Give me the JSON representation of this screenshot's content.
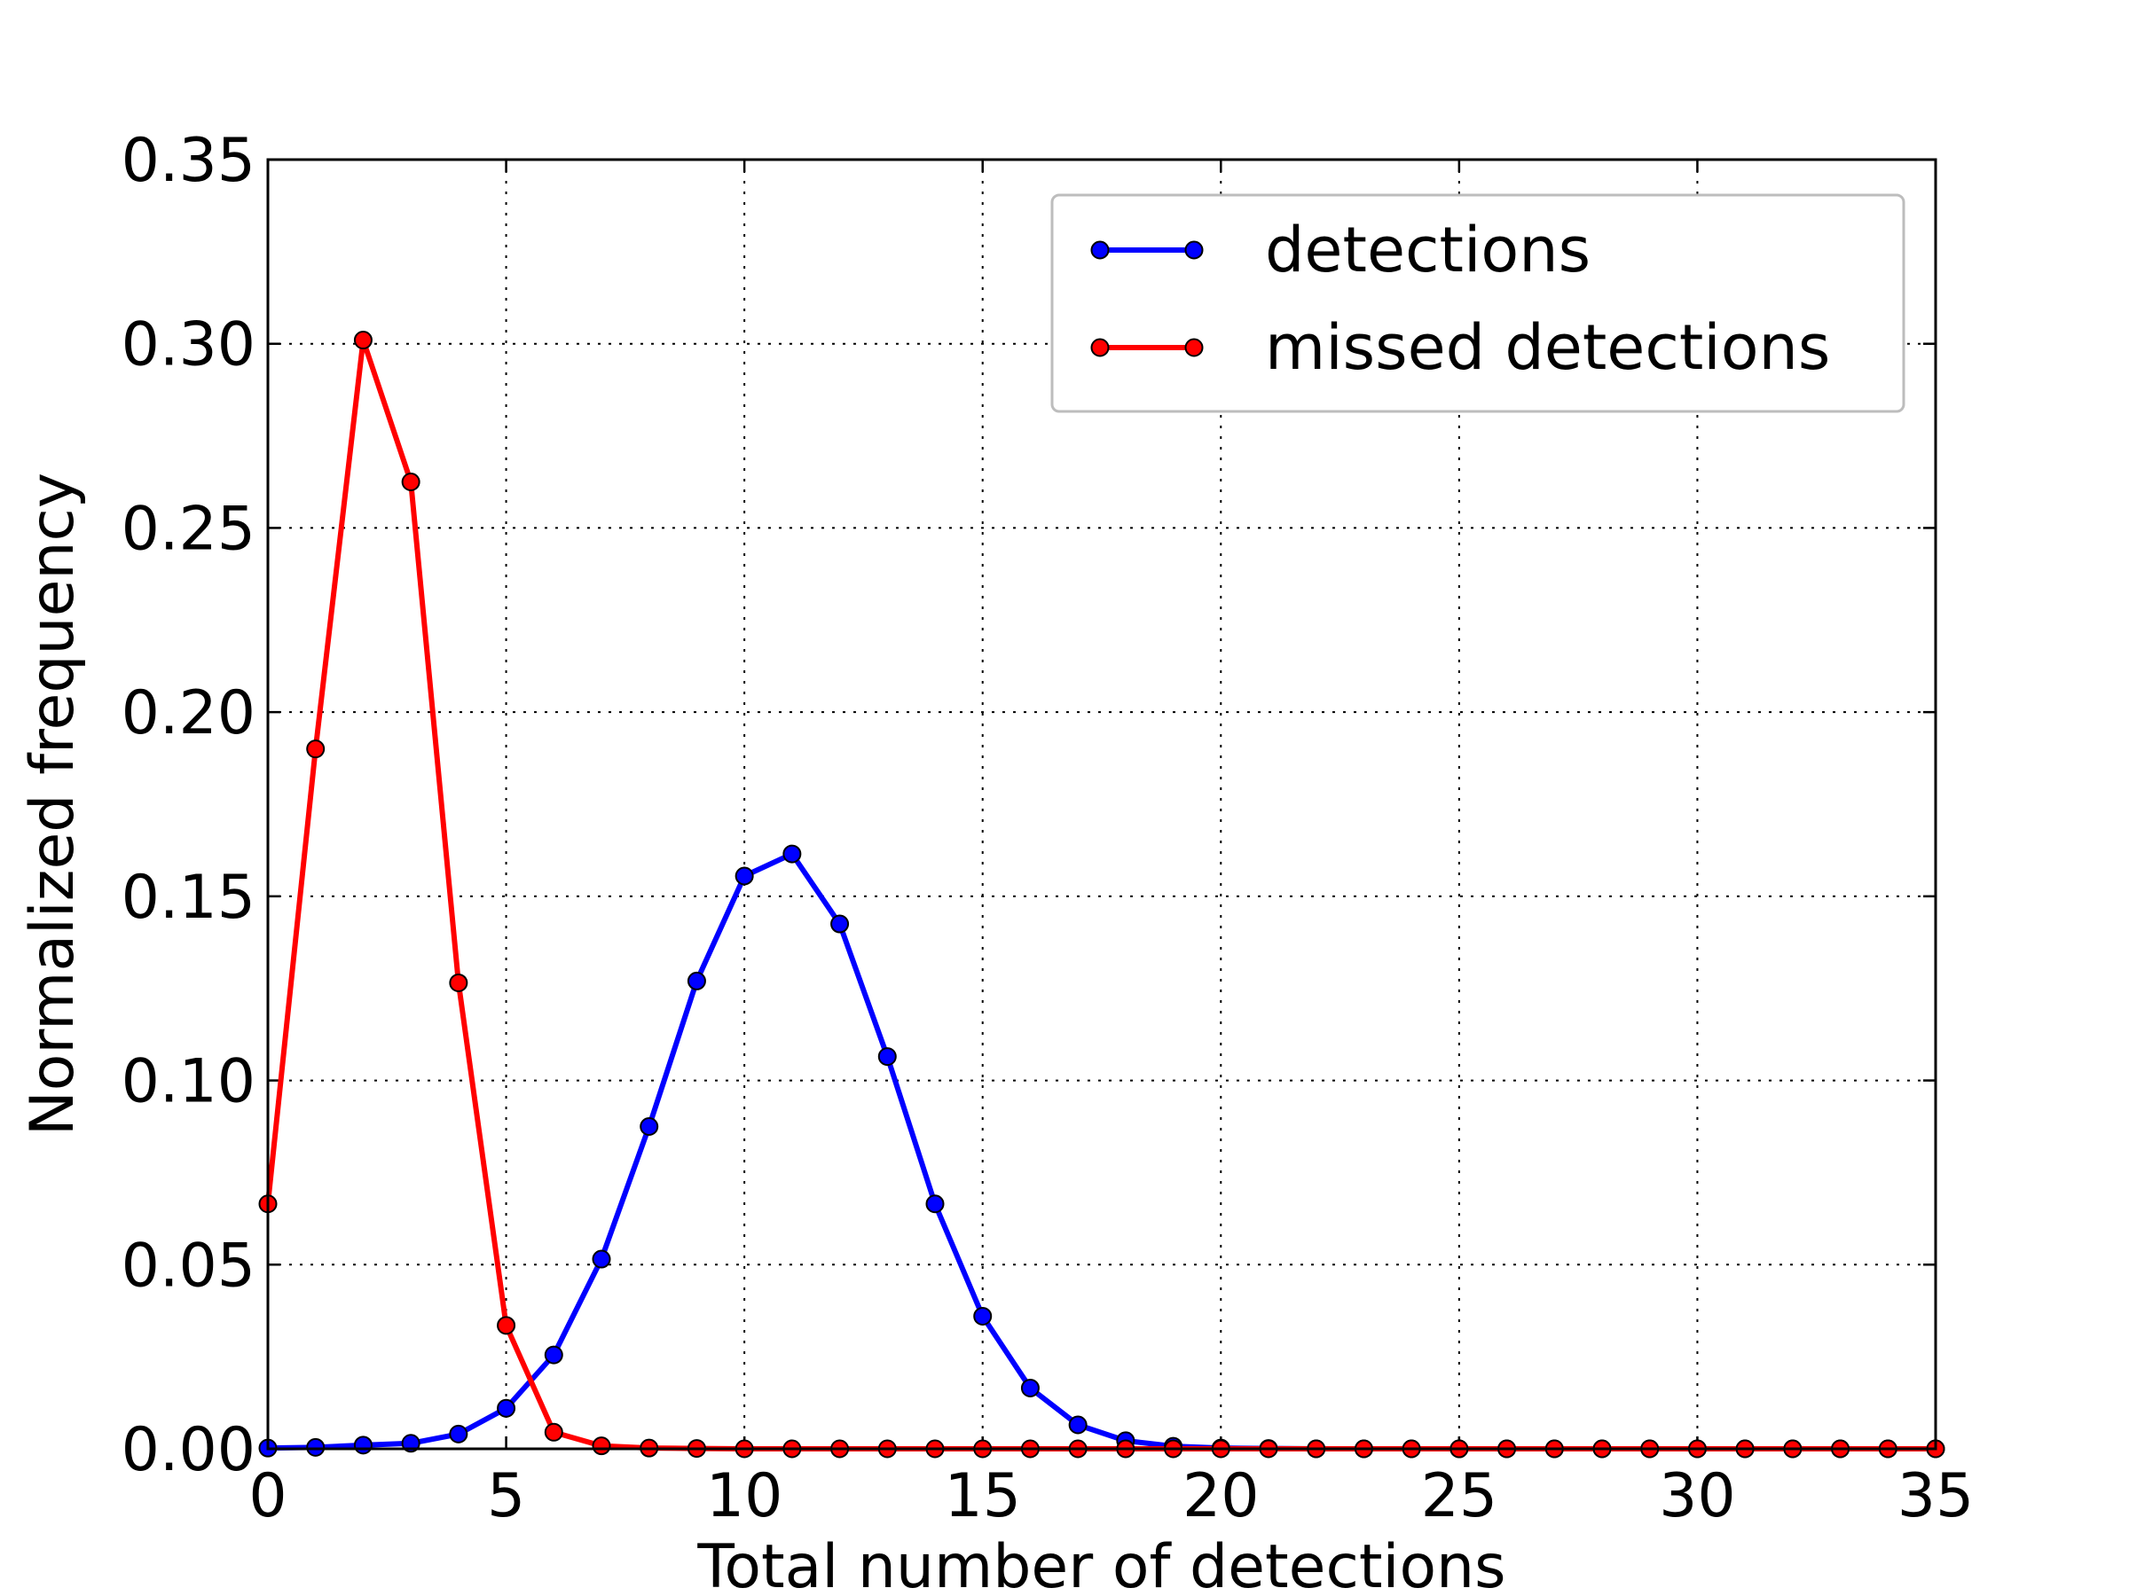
{
  "chart_data": {
    "type": "line",
    "title": "",
    "xlabel": "Total number of detections",
    "ylabel": "Normalized frequency",
    "xlim": [
      0,
      35
    ],
    "ylim": [
      0,
      0.35
    ],
    "xticks": [
      0,
      5,
      10,
      15,
      20,
      25,
      30,
      35
    ],
    "yticks": [
      0.0,
      0.05,
      0.1,
      0.15,
      0.2,
      0.25,
      0.3,
      0.35
    ],
    "xtick_labels": [
      "0",
      "5",
      "10",
      "15",
      "20",
      "25",
      "30",
      "35"
    ],
    "ytick_labels": [
      "0.00",
      "0.05",
      "0.10",
      "0.15",
      "0.20",
      "0.25",
      "0.30",
      "0.35"
    ],
    "grid": true,
    "legend_position": "top-right",
    "x": [
      0,
      1,
      2,
      3,
      4,
      5,
      6,
      7,
      8,
      9,
      10,
      11,
      12,
      13,
      14,
      15,
      16,
      17,
      18,
      19,
      20,
      21,
      22,
      23,
      24,
      25,
      26,
      27,
      28,
      29,
      30,
      31,
      32,
      33,
      34,
      35
    ],
    "series": [
      {
        "name": "detections",
        "color": "#0000ff",
        "marker": "circle",
        "values": [
          0.0002,
          0.0004,
          0.001,
          0.0015,
          0.004,
          0.011,
          0.0255,
          0.0515,
          0.0875,
          0.127,
          0.1555,
          0.1615,
          0.1425,
          0.1065,
          0.0665,
          0.036,
          0.0165,
          0.0065,
          0.0022,
          0.0007,
          0.0002,
          0.0001,
          0,
          0,
          0,
          0,
          0,
          0,
          0,
          0,
          0,
          0,
          0,
          0,
          0,
          0
        ]
      },
      {
        "name": "missed detections",
        "color": "#ff0000",
        "marker": "circle",
        "values": [
          0.0665,
          0.19,
          0.301,
          0.2625,
          0.1265,
          0.0335,
          0.0045,
          0.0008,
          0.0002,
          0.0001,
          0,
          0,
          0,
          0,
          0,
          0,
          0,
          0,
          0,
          0,
          0,
          0,
          0,
          0,
          0,
          0,
          0,
          0,
          0,
          0,
          0,
          0,
          0,
          0,
          0,
          0
        ]
      }
    ]
  }
}
